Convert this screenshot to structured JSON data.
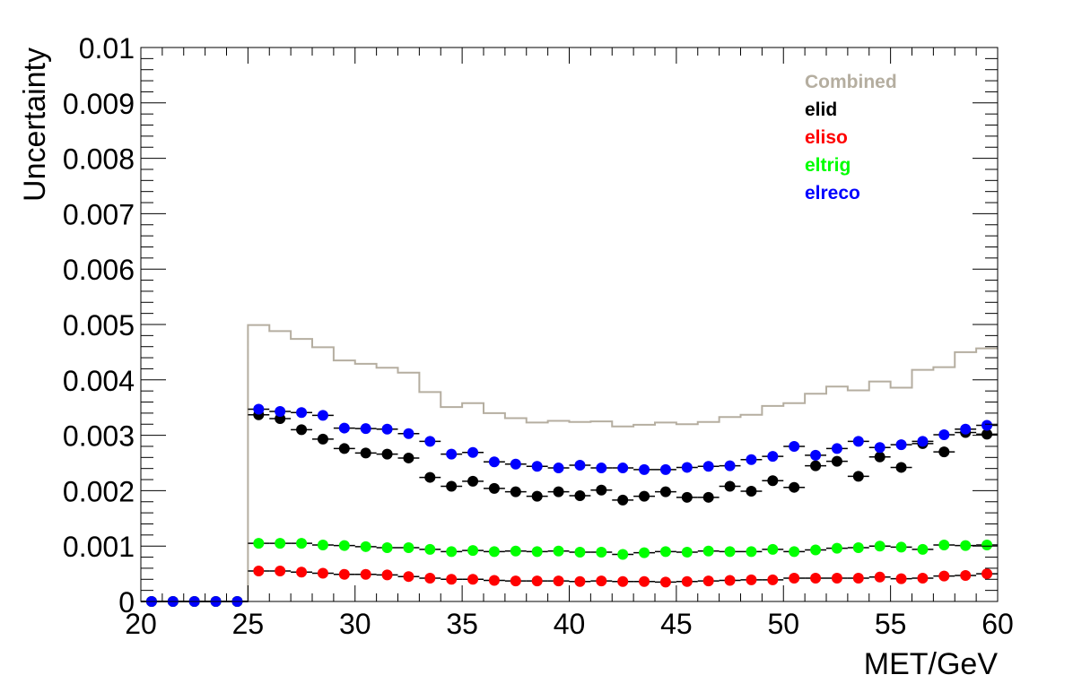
{
  "chart_data": {
    "type": "scatter",
    "title": "",
    "xlabel": "MET/GeV",
    "ylabel": "Uncertainty",
    "xlim": [
      20,
      60
    ],
    "ylim": [
      0,
      0.01
    ],
    "x_ticks": [
      "20",
      "25",
      "30",
      "35",
      "40",
      "45",
      "50",
      "55",
      "60"
    ],
    "y_ticks": [
      "0",
      "0.001",
      "0.002",
      "0.003",
      "0.004",
      "0.005",
      "0.006",
      "0.007",
      "0.008",
      "0.009",
      "0.01"
    ],
    "bin_width": 1,
    "bin_centers": [
      20.5,
      21.5,
      22.5,
      23.5,
      24.5,
      25.5,
      26.5,
      27.5,
      28.5,
      29.5,
      30.5,
      31.5,
      32.5,
      33.5,
      34.5,
      35.5,
      36.5,
      37.5,
      38.5,
      39.5,
      40.5,
      41.5,
      42.5,
      43.5,
      44.5,
      45.5,
      46.5,
      47.5,
      48.5,
      49.5,
      50.5,
      51.5,
      52.5,
      53.5,
      54.5,
      55.5,
      56.5,
      57.5,
      58.5,
      59.5
    ],
    "legend_position": "top-right",
    "series": [
      {
        "name": "Combined",
        "style": "step",
        "color": "#b5aea0",
        "values": [
          0,
          0,
          0,
          0,
          0,
          0.00499,
          0.00488,
          0.00474,
          0.00459,
          0.00435,
          0.00429,
          0.00422,
          0.00413,
          0.00378,
          0.00351,
          0.00358,
          0.0034,
          0.00331,
          0.00323,
          0.00326,
          0.00324,
          0.00325,
          0.00316,
          0.00319,
          0.00323,
          0.0032,
          0.00324,
          0.00333,
          0.00337,
          0.00353,
          0.00358,
          0.00375,
          0.00388,
          0.00381,
          0.00397,
          0.00386,
          0.00418,
          0.00423,
          0.0045,
          0.00457
        ]
      },
      {
        "name": "elid",
        "style": "markers",
        "color": "#000000",
        "values": [
          0,
          0,
          0,
          0,
          0,
          0.00337,
          0.0033,
          0.0031,
          0.00293,
          0.00276,
          0.00268,
          0.00266,
          0.00259,
          0.00224,
          0.00208,
          0.00217,
          0.00204,
          0.00198,
          0.0019,
          0.00198,
          0.00191,
          0.00201,
          0.00183,
          0.0019,
          0.00198,
          0.00188,
          0.00188,
          0.00208,
          0.00199,
          0.00218,
          0.00206,
          0.00245,
          0.00253,
          0.00226,
          0.00261,
          0.00242,
          0.00285,
          0.0027,
          0.00305,
          0.00302
        ]
      },
      {
        "name": "eliso",
        "style": "markers",
        "color": "#ff0000",
        "values": [
          0,
          0,
          0,
          0,
          0,
          0.00055,
          0.00055,
          0.00053,
          0.00051,
          0.00049,
          0.00049,
          0.00048,
          0.00045,
          0.00042,
          0.0004,
          0.0004,
          0.00038,
          0.00037,
          0.00037,
          0.00037,
          0.00036,
          0.00037,
          0.00036,
          0.00036,
          0.00035,
          0.00036,
          0.00037,
          0.00038,
          0.00039,
          0.00039,
          0.00042,
          0.00042,
          0.00042,
          0.00042,
          0.00044,
          0.00041,
          0.00042,
          0.00046,
          0.00047,
          0.0005
        ]
      },
      {
        "name": "eltrig",
        "style": "markers",
        "color": "#00ff00",
        "values": [
          0,
          0,
          0,
          0,
          0,
          0.00105,
          0.00105,
          0.00105,
          0.00102,
          0.00101,
          0.00099,
          0.00097,
          0.00097,
          0.00094,
          0.0009,
          0.00092,
          0.0009,
          0.00091,
          0.0009,
          0.00091,
          0.00089,
          0.00089,
          0.00085,
          0.00088,
          0.0009,
          0.00089,
          0.00091,
          0.0009,
          0.0009,
          0.00094,
          0.0009,
          0.00093,
          0.00096,
          0.00097,
          0.001,
          0.00098,
          0.00094,
          0.00102,
          0.00101,
          0.00102
        ]
      },
      {
        "name": "elreco",
        "style": "markers",
        "color": "#0000ff",
        "values": [
          0,
          0,
          0,
          0,
          0,
          0.00347,
          0.00343,
          0.00341,
          0.00336,
          0.00313,
          0.00312,
          0.00311,
          0.00303,
          0.00289,
          0.00266,
          0.00269,
          0.00252,
          0.00248,
          0.00244,
          0.00241,
          0.00246,
          0.00241,
          0.00241,
          0.00238,
          0.00238,
          0.00242,
          0.00244,
          0.00245,
          0.00256,
          0.00262,
          0.0028,
          0.00264,
          0.00276,
          0.00289,
          0.00278,
          0.00283,
          0.00289,
          0.00301,
          0.00311,
          0.00318
        ]
      }
    ]
  }
}
